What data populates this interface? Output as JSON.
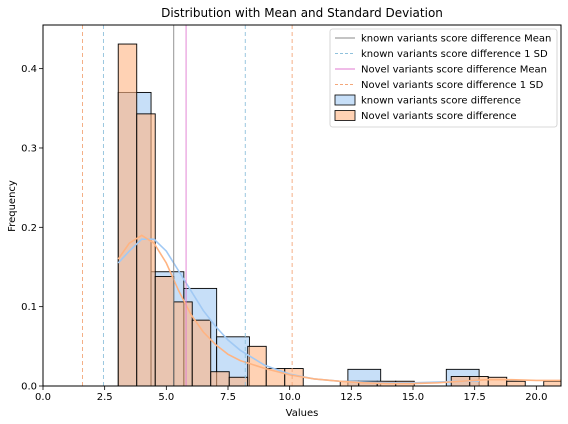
{
  "chart_data": {
    "type": "bar",
    "title": "Distribution with Mean and Standard Deviation",
    "xlabel": "Values",
    "ylabel": "Frequency",
    "xlim": [
      0,
      21
    ],
    "ylim": [
      0,
      0.455
    ],
    "xticks": [
      "0.0",
      "2.5",
      "5.0",
      "7.5",
      "10.0",
      "12.5",
      "15.0",
      "17.5",
      "20.0"
    ],
    "xtick_values": [
      0,
      2.5,
      5,
      7.5,
      10,
      12.5,
      15,
      17.5,
      20
    ],
    "yticks": [
      "0.0",
      "0.1",
      "0.2",
      "0.3",
      "0.4"
    ],
    "ytick_values": [
      0,
      0.1,
      0.2,
      0.3,
      0.4
    ],
    "grid": false,
    "legend_position": "top-right",
    "series": [
      {
        "name": "known variants score difference",
        "kind": "histogram",
        "color": "#a1c9f4",
        "bins": [
          {
            "x0": 3.05,
            "x1": 4.38,
            "value": 0.37
          },
          {
            "x0": 4.38,
            "x1": 5.71,
            "value": 0.144
          },
          {
            "x0": 5.71,
            "x1": 7.04,
            "value": 0.123
          },
          {
            "x0": 7.04,
            "x1": 8.37,
            "value": 0.062
          },
          {
            "x0": 8.37,
            "x1": 9.7,
            "value": 0.0
          },
          {
            "x0": 9.7,
            "x1": 11.03,
            "value": 0.0
          },
          {
            "x0": 11.03,
            "x1": 12.36,
            "value": 0.0
          },
          {
            "x0": 12.36,
            "x1": 13.69,
            "value": 0.021
          },
          {
            "x0": 13.69,
            "x1": 15.02,
            "value": 0.0
          },
          {
            "x0": 15.02,
            "x1": 16.35,
            "value": 0.0
          },
          {
            "x0": 16.35,
            "x1": 17.68,
            "value": 0.021
          }
        ],
        "kde_x": [
          3.05,
          3.5,
          4.0,
          4.5,
          5.0,
          5.5,
          6.0,
          6.5,
          7.0,
          7.5,
          8.0,
          9.0,
          10.0,
          11.0,
          12.0,
          13.0,
          14.0,
          15.0,
          16.0,
          17.0,
          17.68
        ],
        "kde_y": [
          0.155,
          0.17,
          0.185,
          0.185,
          0.17,
          0.145,
          0.12,
          0.095,
          0.075,
          0.058,
          0.045,
          0.026,
          0.015,
          0.009,
          0.006,
          0.005,
          0.004,
          0.004,
          0.005,
          0.006,
          0.006
        ]
      },
      {
        "name": "Novel variants score difference",
        "kind": "histogram",
        "color": "#ffb482",
        "bins": [
          {
            "x0": 3.05,
            "x1": 3.8,
            "value": 0.431
          },
          {
            "x0": 3.8,
            "x1": 4.55,
            "value": 0.343
          },
          {
            "x0": 4.55,
            "x1": 5.3,
            "value": 0.138
          },
          {
            "x0": 5.3,
            "x1": 6.05,
            "value": 0.106
          },
          {
            "x0": 6.05,
            "x1": 6.8,
            "value": 0.083
          },
          {
            "x0": 6.8,
            "x1": 7.55,
            "value": 0.018
          },
          {
            "x0": 7.55,
            "x1": 8.3,
            "value": 0.011
          },
          {
            "x0": 8.3,
            "x1": 9.05,
            "value": 0.05
          },
          {
            "x0": 9.05,
            "x1": 9.8,
            "value": 0.022
          },
          {
            "x0": 9.8,
            "x1": 10.55,
            "value": 0.022
          },
          {
            "x0": 10.55,
            "x1": 11.3,
            "value": 0.0
          },
          {
            "x0": 11.3,
            "x1": 12.05,
            "value": 0.0
          },
          {
            "x0": 12.05,
            "x1": 12.8,
            "value": 0.006
          },
          {
            "x0": 12.8,
            "x1": 13.55,
            "value": 0.006
          },
          {
            "x0": 13.55,
            "x1": 14.3,
            "value": 0.006
          },
          {
            "x0": 14.3,
            "x1": 15.05,
            "value": 0.006
          },
          {
            "x0": 15.05,
            "x1": 15.8,
            "value": 0.0
          },
          {
            "x0": 15.8,
            "x1": 16.55,
            "value": 0.0
          },
          {
            "x0": 16.55,
            "x1": 17.3,
            "value": 0.012
          },
          {
            "x0": 17.3,
            "x1": 18.05,
            "value": 0.012
          },
          {
            "x0": 18.05,
            "x1": 18.8,
            "value": 0.011
          },
          {
            "x0": 18.8,
            "x1": 19.55,
            "value": 0.006
          },
          {
            "x0": 19.55,
            "x1": 20.3,
            "value": 0.0
          },
          {
            "x0": 20.3,
            "x1": 21.05,
            "value": 0.006
          }
        ],
        "kde_x": [
          3.05,
          3.5,
          4.0,
          4.5,
          5.0,
          5.5,
          6.0,
          6.5,
          7.0,
          7.5,
          8.0,
          9.0,
          10.0,
          11.0,
          12.0,
          13.0,
          14.0,
          15.0,
          16.0,
          17.0,
          18.0,
          19.0,
          20.0,
          21.0
        ],
        "kde_y": [
          0.16,
          0.18,
          0.19,
          0.18,
          0.155,
          0.12,
          0.09,
          0.068,
          0.052,
          0.04,
          0.032,
          0.022,
          0.014,
          0.009,
          0.006,
          0.004,
          0.003,
          0.003,
          0.004,
          0.006,
          0.008,
          0.008,
          0.007,
          0.007
        ]
      }
    ],
    "reference_lines": [
      {
        "name": "known variants score difference Mean",
        "style": "solid",
        "color": "#888888",
        "x": [
          5.3
        ]
      },
      {
        "name": "known variants score difference 1 SD",
        "style": "dashed",
        "color": "#8fc1dc",
        "x": [
          2.45,
          8.2
        ]
      },
      {
        "name": "Novel variants score difference Mean",
        "style": "solid",
        "color": "#e07ad0",
        "x": [
          5.8
        ]
      },
      {
        "name": "Novel variants score difference 1 SD",
        "style": "dashed",
        "color": "#f4a77a",
        "x": [
          1.6,
          10.1
        ]
      }
    ],
    "legend": [
      {
        "label": "known variants score difference Mean",
        "kind": "line",
        "style": "solid",
        "color": "#888888"
      },
      {
        "label": "known variants score difference 1 SD",
        "kind": "line",
        "style": "dashed",
        "color": "#8fc1dc"
      },
      {
        "label": "Novel variants score difference Mean",
        "kind": "line",
        "style": "solid",
        "color": "#e07ad0"
      },
      {
        "label": "Novel variants score difference 1 SD",
        "kind": "line",
        "style": "dashed",
        "color": "#f4a77a"
      },
      {
        "label": "known variants score difference",
        "kind": "patch",
        "color": "#a1c9f4"
      },
      {
        "label": "Novel variants score difference",
        "kind": "patch",
        "color": "#ffb482"
      }
    ]
  }
}
